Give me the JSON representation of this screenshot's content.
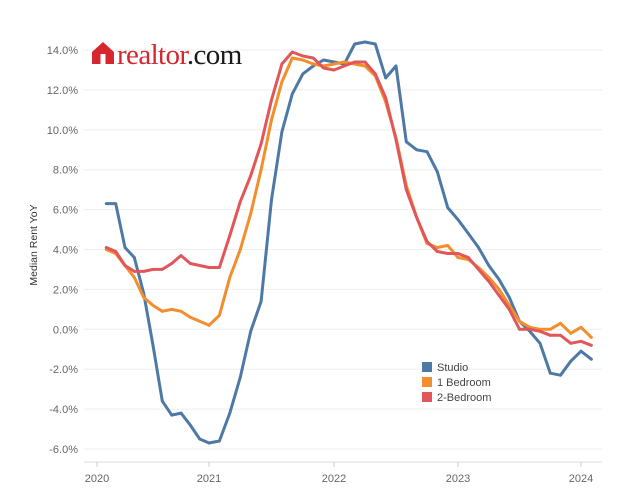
{
  "logo": {
    "text_main": "realtor",
    "text_suffix": ".com",
    "brand_color": "#d6262f",
    "text_color": "#1a1a1a"
  },
  "chart_data": {
    "type": "line",
    "ylabel": "Median Rent YoY",
    "xlabel": "",
    "title": "",
    "xlim": [
      "2020-01",
      "2024-04"
    ],
    "ylim": [
      -6.5,
      14.8
    ],
    "grid": true,
    "legend_position": "bottom-right",
    "x_ticks": [
      "2020",
      "2021",
      "2022",
      "2023",
      "2024"
    ],
    "y_ticks": [
      "14.0%",
      "12.0%",
      "10.0%",
      "8.0%",
      "6.0%",
      "4.0%",
      "2.0%",
      "0.0%",
      "-2.0%",
      "-4.0%",
      "-6.0%"
    ],
    "series": [
      {
        "name": "Studio",
        "color": "#4e79a7",
        "points": [
          [
            "2020-02",
            6.3
          ],
          [
            "2020-03",
            6.3
          ],
          [
            "2020-04",
            4.1
          ],
          [
            "2020-05",
            3.6
          ],
          [
            "2020-06",
            1.8
          ],
          [
            "2020-07",
            -0.8
          ],
          [
            "2020-08",
            -3.6
          ],
          [
            "2020-09",
            -4.3
          ],
          [
            "2020-10",
            -4.2
          ],
          [
            "2020-11",
            -4.8
          ],
          [
            "2020-12",
            -5.5
          ],
          [
            "2021-01",
            -5.7
          ],
          [
            "2021-02",
            -5.6
          ],
          [
            "2021-03",
            -4.2
          ],
          [
            "2021-04",
            -2.4
          ],
          [
            "2021-05",
            -0.1
          ],
          [
            "2021-06",
            1.4
          ],
          [
            "2021-07",
            6.5
          ],
          [
            "2021-08",
            9.9
          ],
          [
            "2021-09",
            11.8
          ],
          [
            "2021-10",
            12.8
          ],
          [
            "2021-11",
            13.2
          ],
          [
            "2021-12",
            13.5
          ],
          [
            "2022-01",
            13.4
          ],
          [
            "2022-02",
            13.3
          ],
          [
            "2022-03",
            14.3
          ],
          [
            "2022-04",
            14.4
          ],
          [
            "2022-05",
            14.3
          ],
          [
            "2022-06",
            12.6
          ],
          [
            "2022-07",
            13.2
          ],
          [
            "2022-08",
            9.4
          ],
          [
            "2022-09",
            9.0
          ],
          [
            "2022-10",
            8.9
          ],
          [
            "2022-11",
            7.9
          ],
          [
            "2022-12",
            6.1
          ],
          [
            "2023-01",
            5.5
          ],
          [
            "2023-02",
            4.8
          ],
          [
            "2023-03",
            4.1
          ],
          [
            "2023-04",
            3.2
          ],
          [
            "2023-05",
            2.5
          ],
          [
            "2023-06",
            1.6
          ],
          [
            "2023-07",
            0.4
          ],
          [
            "2023-08",
            -0.1
          ],
          [
            "2023-09",
            -0.7
          ],
          [
            "2023-10",
            -2.2
          ],
          [
            "2023-11",
            -2.3
          ],
          [
            "2023-12",
            -1.6
          ],
          [
            "2024-01",
            -1.1
          ],
          [
            "2024-02",
            -1.5
          ]
        ]
      },
      {
        "name": "1 Bedroom",
        "color": "#f28e2b",
        "points": [
          [
            "2020-02",
            4.0
          ],
          [
            "2020-03",
            3.8
          ],
          [
            "2020-04",
            3.2
          ],
          [
            "2020-05",
            2.6
          ],
          [
            "2020-06",
            1.6
          ],
          [
            "2020-07",
            1.2
          ],
          [
            "2020-08",
            0.9
          ],
          [
            "2020-09",
            1.0
          ],
          [
            "2020-10",
            0.9
          ],
          [
            "2020-11",
            0.6
          ],
          [
            "2020-12",
            0.4
          ],
          [
            "2021-01",
            0.2
          ],
          [
            "2021-02",
            0.7
          ],
          [
            "2021-03",
            2.6
          ],
          [
            "2021-04",
            4.0
          ],
          [
            "2021-05",
            5.8
          ],
          [
            "2021-06",
            8.0
          ],
          [
            "2021-07",
            10.5
          ],
          [
            "2021-08",
            12.4
          ],
          [
            "2021-09",
            13.6
          ],
          [
            "2021-10",
            13.5
          ],
          [
            "2021-11",
            13.3
          ],
          [
            "2021-12",
            13.2
          ],
          [
            "2022-01",
            13.3
          ],
          [
            "2022-02",
            13.4
          ],
          [
            "2022-03",
            13.3
          ],
          [
            "2022-04",
            13.2
          ],
          [
            "2022-05",
            12.7
          ],
          [
            "2022-06",
            11.4
          ],
          [
            "2022-07",
            9.6
          ],
          [
            "2022-08",
            7.2
          ],
          [
            "2022-09",
            5.6
          ],
          [
            "2022-10",
            4.3
          ],
          [
            "2022-11",
            4.1
          ],
          [
            "2022-12",
            4.2
          ],
          [
            "2023-01",
            3.6
          ],
          [
            "2023-02",
            3.5
          ],
          [
            "2023-03",
            3.1
          ],
          [
            "2023-04",
            2.6
          ],
          [
            "2023-05",
            2.0
          ],
          [
            "2023-06",
            1.2
          ],
          [
            "2023-07",
            0.4
          ],
          [
            "2023-08",
            0.1
          ],
          [
            "2023-09",
            0.0
          ],
          [
            "2023-10",
            0.0
          ],
          [
            "2023-11",
            0.3
          ],
          [
            "2023-12",
            -0.2
          ],
          [
            "2024-01",
            0.1
          ],
          [
            "2024-02",
            -0.4
          ]
        ]
      },
      {
        "name": "2-Bedroom",
        "color": "#e15759",
        "points": [
          [
            "2020-02",
            4.1
          ],
          [
            "2020-03",
            3.9
          ],
          [
            "2020-04",
            3.2
          ],
          [
            "2020-05",
            2.9
          ],
          [
            "2020-06",
            2.9
          ],
          [
            "2020-07",
            3.0
          ],
          [
            "2020-08",
            3.0
          ],
          [
            "2020-09",
            3.3
          ],
          [
            "2020-10",
            3.7
          ],
          [
            "2020-11",
            3.3
          ],
          [
            "2020-12",
            3.2
          ],
          [
            "2021-01",
            3.1
          ],
          [
            "2021-02",
            3.1
          ],
          [
            "2021-03",
            4.7
          ],
          [
            "2021-04",
            6.4
          ],
          [
            "2021-05",
            7.7
          ],
          [
            "2021-06",
            9.3
          ],
          [
            "2021-07",
            11.5
          ],
          [
            "2021-08",
            13.3
          ],
          [
            "2021-09",
            13.9
          ],
          [
            "2021-10",
            13.7
          ],
          [
            "2021-11",
            13.6
          ],
          [
            "2021-12",
            13.1
          ],
          [
            "2022-01",
            13.0
          ],
          [
            "2022-02",
            13.2
          ],
          [
            "2022-03",
            13.4
          ],
          [
            "2022-04",
            13.4
          ],
          [
            "2022-05",
            12.8
          ],
          [
            "2022-06",
            11.6
          ],
          [
            "2022-07",
            9.5
          ],
          [
            "2022-08",
            7.0
          ],
          [
            "2022-09",
            5.6
          ],
          [
            "2022-10",
            4.4
          ],
          [
            "2022-11",
            3.9
          ],
          [
            "2022-12",
            3.8
          ],
          [
            "2023-01",
            3.8
          ],
          [
            "2023-02",
            3.6
          ],
          [
            "2023-03",
            3.0
          ],
          [
            "2023-04",
            2.4
          ],
          [
            "2023-05",
            1.7
          ],
          [
            "2023-06",
            1.0
          ],
          [
            "2023-07",
            0.0
          ],
          [
            "2023-08",
            0.0
          ],
          [
            "2023-09",
            -0.1
          ],
          [
            "2023-10",
            -0.3
          ],
          [
            "2023-11",
            -0.3
          ],
          [
            "2023-12",
            -0.7
          ],
          [
            "2024-01",
            -0.6
          ],
          [
            "2024-02",
            -0.8
          ]
        ]
      }
    ]
  }
}
